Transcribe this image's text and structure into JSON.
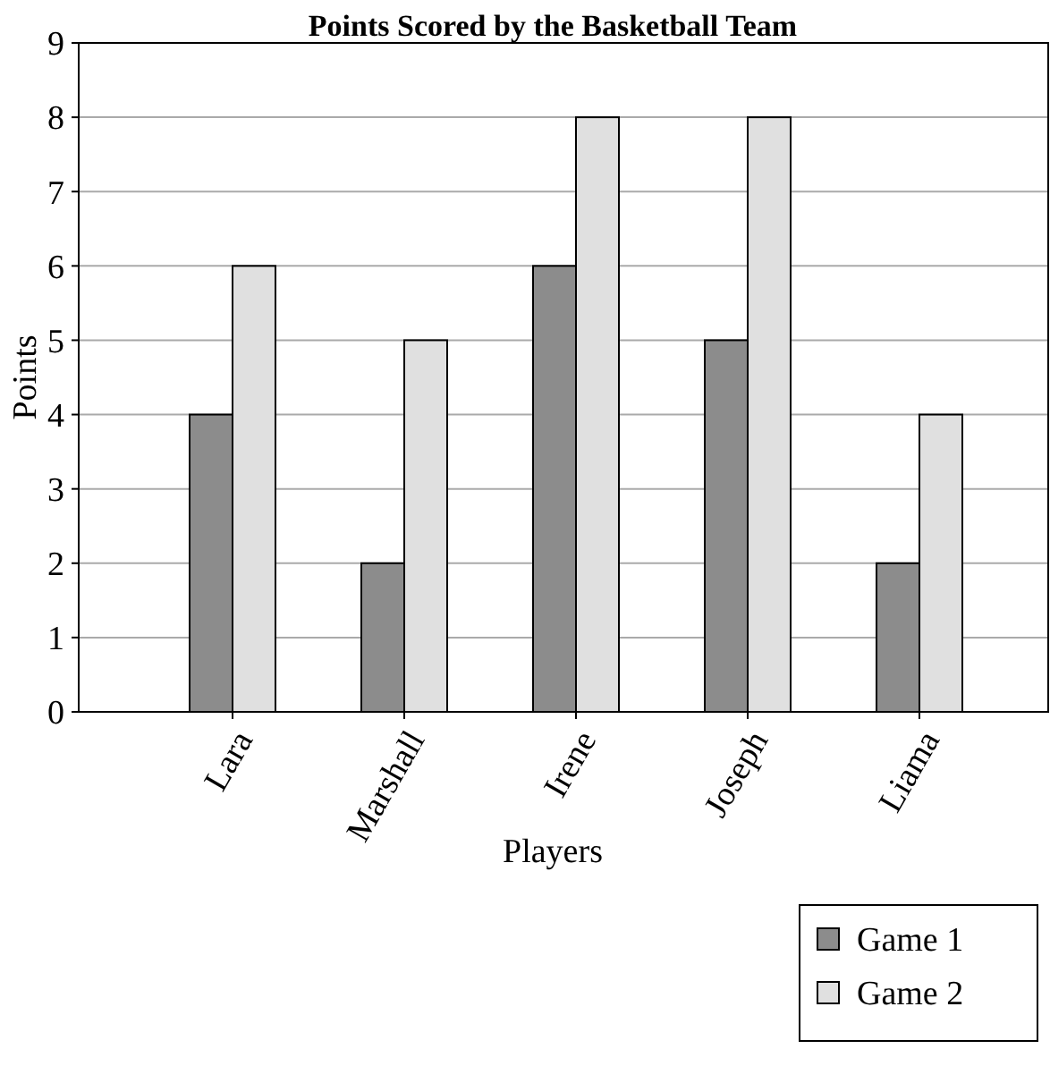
{
  "chart_data": {
    "type": "bar",
    "title": "Points Scored by the Basketball Team",
    "xlabel": "Players",
    "ylabel": "Points",
    "categories": [
      "Lara",
      "Marshall",
      "Irene",
      "Joseph",
      "Liama"
    ],
    "series": [
      {
        "name": "Game 1",
        "color": "#8c8c8c",
        "values": [
          4,
          2,
          6,
          5,
          2
        ]
      },
      {
        "name": "Game 2",
        "color": "#e0e0e0",
        "values": [
          6,
          5,
          8,
          8,
          4
        ]
      }
    ],
    "ylim": [
      0,
      9
    ],
    "yticks": [
      0,
      1,
      2,
      3,
      4,
      5,
      6,
      7,
      8,
      9
    ],
    "grid": "y",
    "legend": "bottom right"
  }
}
